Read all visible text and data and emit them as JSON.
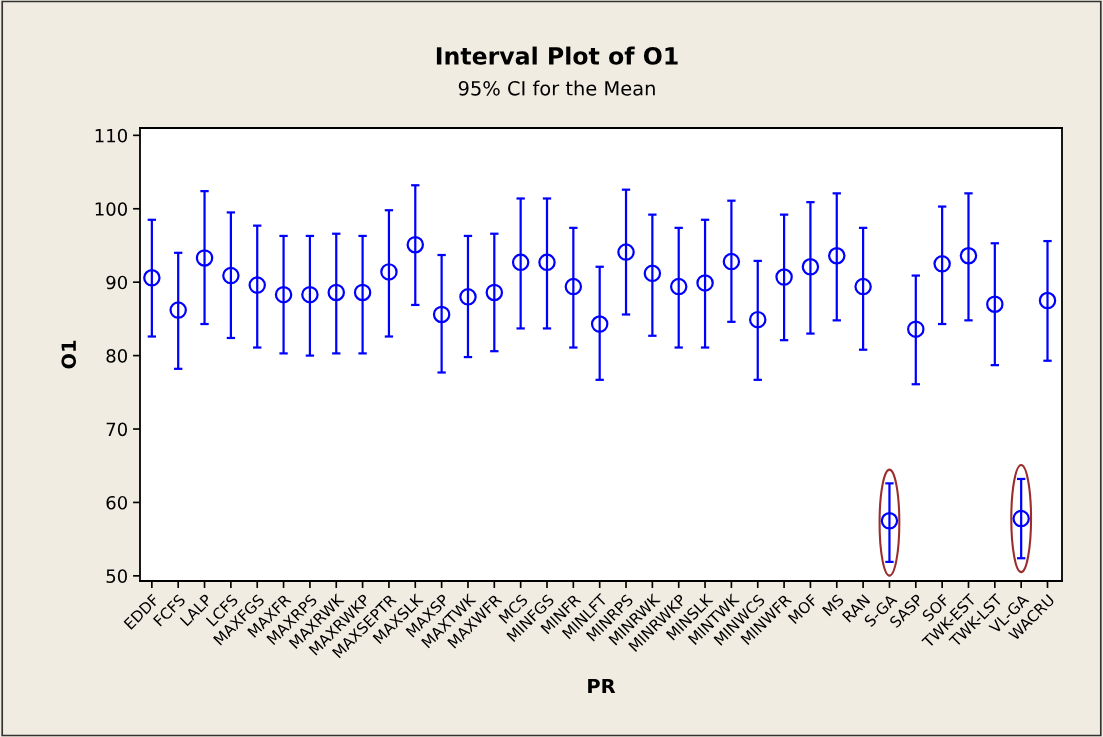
{
  "chart_data": {
    "type": "scatter",
    "title": "Interval Plot of O1",
    "subtitle": "95% CI for the Mean",
    "xlabel": "PR",
    "ylabel": "O1",
    "categories": [
      "EDDF",
      "FCFS",
      "LALP",
      "LCFS",
      "MAXFGS",
      "MAXFR",
      "MAXRPS",
      "MAXRWK",
      "MAXRWKP",
      "MAXSEPTR",
      "MAXSLK",
      "MAXSP",
      "MAXTWK",
      "MAXWFR",
      "MCS",
      "MINFGS",
      "MINFR",
      "MINLFT",
      "MINRPS",
      "MINRWK",
      "MINRWKP",
      "MINSLK",
      "MINTWK",
      "MINWCS",
      "MINWFR",
      "MOF",
      "MS",
      "RAN",
      "S-GA",
      "SASP",
      "SOF",
      "TWK-EST",
      "TWK-LST",
      "VL-GA",
      "WACRU"
    ],
    "series": [
      {
        "color": "#0000ff",
        "values": [
          90.6,
          86.2,
          93.3,
          90.9,
          89.6,
          88.3,
          88.3,
          88.6,
          88.6,
          91.4,
          95.1,
          85.6,
          88.0,
          88.6,
          92.7,
          92.7,
          89.4,
          84.3,
          94.1,
          91.2,
          89.4,
          89.9,
          92.8,
          84.9,
          90.7,
          92.1,
          93.6,
          89.4,
          57.5,
          83.6,
          92.5,
          93.6,
          87.0,
          57.8,
          87.5
        ],
        "errors": [
          [
            82.6,
            98.5
          ],
          [
            78.2,
            94.0
          ],
          [
            84.3,
            102.4
          ],
          [
            82.4,
            99.5
          ],
          [
            81.1,
            97.7
          ],
          [
            80.3,
            96.3
          ],
          [
            80.0,
            96.3
          ],
          [
            80.3,
            96.6
          ],
          [
            80.3,
            96.3
          ],
          [
            82.6,
            99.8
          ],
          [
            86.9,
            103.2
          ],
          [
            77.7,
            93.7
          ],
          [
            79.8,
            96.3
          ],
          [
            80.6,
            96.6
          ],
          [
            83.7,
            101.4
          ],
          [
            83.7,
            101.4
          ],
          [
            81.1,
            97.4
          ],
          [
            76.7,
            92.1
          ],
          [
            85.6,
            102.6
          ],
          [
            82.7,
            99.2
          ],
          [
            81.1,
            97.4
          ],
          [
            81.1,
            98.5
          ],
          [
            84.6,
            101.1
          ],
          [
            76.7,
            92.9
          ],
          [
            82.1,
            99.2
          ],
          [
            83.0,
            100.9
          ],
          [
            84.8,
            102.1
          ],
          [
            80.8,
            97.4
          ],
          [
            51.9,
            62.6
          ],
          [
            76.1,
            90.9
          ],
          [
            84.3,
            100.3
          ],
          [
            84.8,
            102.1
          ],
          [
            78.7,
            95.3
          ],
          [
            52.4,
            63.2
          ],
          [
            79.3,
            95.6
          ]
        ]
      }
    ],
    "ylim": [
      49.3,
      111
    ],
    "yticks": [
      50,
      60,
      70,
      80,
      90,
      100,
      110
    ],
    "marker": "circle",
    "grid": false,
    "legend": false
  }
}
